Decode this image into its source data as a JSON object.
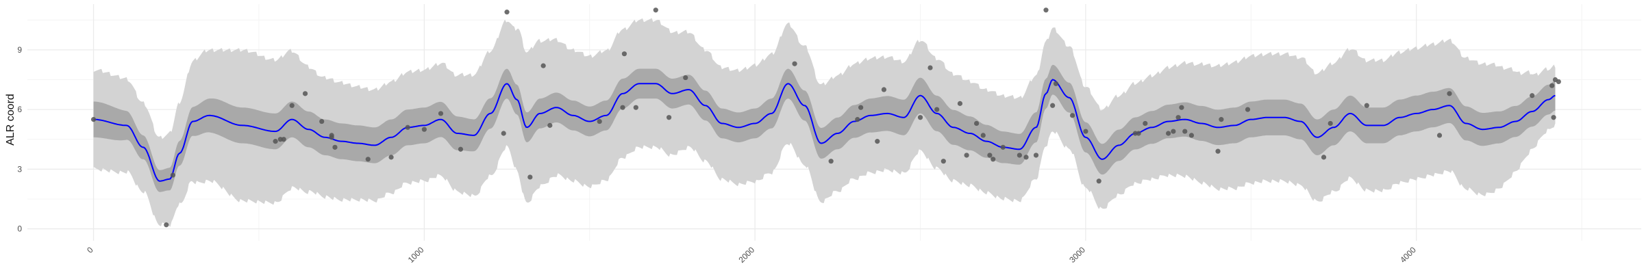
{
  "chart_data": {
    "type": "line",
    "title": "",
    "xlabel": "",
    "ylabel": "ALR coord",
    "xlim": [
      -200,
      4680
    ],
    "ylim": [
      -0.6,
      11.3
    ],
    "x_ticks": [
      0,
      1000,
      2000,
      3000,
      4000
    ],
    "x_tick_labels": [
      "0",
      "1000",
      "2000",
      "3000",
      "4000"
    ],
    "y_ticks": [
      0,
      3,
      6,
      9
    ],
    "y_tick_labels": [
      "0",
      "3",
      "6",
      "9"
    ],
    "grid": true,
    "x_tick_label_rotation": -45,
    "colors": {
      "mean_line": "#0000ff",
      "inner_band": "#a9a9a9",
      "outer_band": "#d3d3d3",
      "points": "#555555",
      "grid_major": "#ebebeb",
      "grid_minor": "#f4f4f4"
    },
    "mean_curve": {
      "x": [
        0,
        100,
        150,
        200,
        230,
        260,
        300,
        350,
        450,
        550,
        600,
        650,
        700,
        750,
        800,
        850,
        900,
        950,
        1000,
        1050,
        1100,
        1150,
        1200,
        1250,
        1280,
        1310,
        1350,
        1400,
        1450,
        1500,
        1550,
        1600,
        1650,
        1700,
        1750,
        1800,
        1850,
        1900,
        1950,
        2000,
        2050,
        2100,
        2150,
        2200,
        2250,
        2300,
        2350,
        2400,
        2450,
        2500,
        2550,
        2600,
        2650,
        2700,
        2750,
        2800,
        2850,
        2880,
        2900,
        2950,
        3000,
        3050,
        3100,
        3150,
        3200,
        3250,
        3300,
        3350,
        3400,
        3450,
        3500,
        3550,
        3600,
        3650,
        3700,
        3750,
        3800,
        3850,
        3900,
        3950,
        4000,
        4050,
        4100,
        4150,
        4200,
        4250,
        4300,
        4350,
        4400,
        4420
      ],
      "y": [
        5.5,
        5.2,
        4.1,
        2.4,
        2.5,
        3.8,
        5.4,
        5.7,
        5.2,
        4.9,
        5.5,
        5.0,
        4.6,
        4.4,
        4.3,
        4.2,
        4.6,
        5.1,
        5.2,
        5.5,
        4.8,
        4.7,
        5.8,
        7.3,
        6.5,
        5.1,
        5.8,
        6.1,
        5.7,
        5.4,
        5.7,
        6.8,
        7.3,
        7.3,
        6.8,
        7.0,
        6.2,
        5.3,
        5.1,
        5.3,
        5.8,
        7.3,
        6.2,
        4.3,
        4.8,
        5.4,
        5.7,
        5.8,
        5.6,
        6.7,
        5.8,
        5.1,
        4.8,
        4.4,
        4.1,
        4.0,
        5.1,
        6.8,
        7.5,
        6.6,
        4.6,
        3.5,
        4.2,
        4.8,
        5.1,
        5.4,
        5.5,
        5.3,
        5.1,
        5.2,
        5.5,
        5.6,
        5.6,
        5.4,
        4.6,
        5.1,
        5.8,
        5.2,
        5.2,
        5.6,
        5.8,
        6.0,
        6.2,
        5.3,
        5.0,
        5.1,
        5.4,
        5.9,
        6.5,
        6.7
      ]
    },
    "inner_band_halfwidth": {
      "x": [
        0,
        200,
        400,
        1000,
        1250,
        1700,
        2100,
        2500,
        2900,
        3500,
        4000,
        4420
      ],
      "y": [
        0.9,
        0.55,
        0.9,
        0.9,
        0.75,
        0.75,
        0.75,
        0.9,
        0.75,
        0.9,
        0.9,
        0.75
      ]
    },
    "outer_band_halfwidth": {
      "x": [
        0,
        200,
        350,
        450,
        550,
        700,
        850,
        1000,
        1250,
        1300,
        1450,
        1700,
        1850,
        2100,
        2300,
        2500,
        2700,
        2900,
        3100,
        3500,
        4000,
        4200,
        4420
      ],
      "y": [
        2.5,
        2.2,
        3.3,
        3.8,
        3.6,
        3.0,
        2.8,
        2.8,
        3.2,
        3.8,
        3.3,
        3.2,
        2.8,
        3.0,
        2.9,
        2.8,
        2.6,
        2.6,
        2.5,
        3.2,
        3.3,
        3.3,
        1.5
      ]
    },
    "points": {
      "x": [
        0,
        220,
        240,
        550,
        565,
        575,
        600,
        640,
        690,
        720,
        720,
        730,
        830,
        900,
        950,
        1000,
        1050,
        1110,
        1240,
        1250,
        1320,
        1360,
        1380,
        1530,
        1600,
        1605,
        1640,
        1700,
        1740,
        1790,
        2120,
        2230,
        2310,
        2320,
        2370,
        2390,
        2500,
        2530,
        2550,
        2570,
        2620,
        2640,
        2670,
        2690,
        2710,
        2720,
        2750,
        2800,
        2820,
        2850,
        2880,
        2900,
        2910,
        2960,
        3000,
        3040,
        3150,
        3160,
        3180,
        3250,
        3265,
        3280,
        3290,
        3300,
        3320,
        3400,
        3410,
        3490,
        3720,
        3740,
        3850,
        4070,
        4100,
        4350,
        4410,
        4415,
        4420,
        4430
      ],
      "y": [
        5.5,
        0.2,
        2.7,
        4.4,
        4.5,
        4.5,
        6.2,
        6.8,
        5.4,
        4.7,
        4.6,
        4.1,
        3.5,
        3.6,
        5.1,
        5.0,
        5.8,
        4.0,
        4.8,
        10.9,
        2.6,
        8.2,
        5.2,
        5.4,
        6.1,
        8.8,
        6.1,
        11.0,
        5.6,
        7.6,
        8.3,
        3.4,
        5.5,
        6.1,
        4.4,
        7.0,
        5.6,
        8.1,
        6.0,
        3.4,
        6.3,
        3.7,
        5.3,
        4.7,
        3.7,
        3.5,
        4.1,
        3.7,
        3.6,
        3.7,
        11.0,
        6.2,
        7.3,
        5.7,
        4.9,
        2.4,
        4.8,
        4.8,
        5.3,
        4.8,
        4.9,
        5.6,
        6.1,
        4.9,
        4.7,
        3.9,
        5.5,
        6.0,
        3.6,
        5.3,
        6.2,
        4.7,
        6.8,
        6.7,
        7.2,
        5.6,
        7.5,
        7.4
      ]
    }
  }
}
